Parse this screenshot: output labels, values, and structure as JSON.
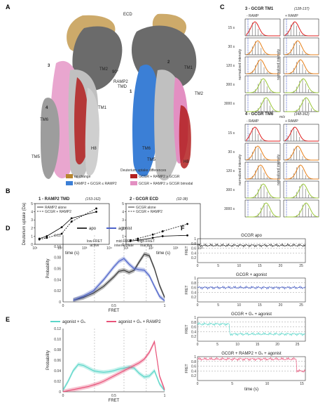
{
  "panels": {
    "A": {
      "letter": "A",
      "labels": {
        "ecd": "ECD",
        "tm2": "TM2",
        "tm6": "TM6",
        "tm1": "TM1",
        "tm5": "TM5",
        "h8": "H8",
        "ramp2tmd": "RAMP2\nTMD",
        "rot": "90°",
        "n1": "1",
        "n2": "2",
        "n3": "3",
        "n4": "4"
      },
      "legend_title": "Deuterium uptake differences",
      "legend": [
        {
          "label": "no change",
          "color": "#b8862f"
        },
        {
          "label": "GCGR + RAMP2 ≥ GCGR",
          "color": "#b32020"
        },
        {
          "label": "RAMP2 + GCGR ≤ RAMP2",
          "color": "#3b7fd6"
        },
        {
          "label": "GCGR + RAMP2 ≥ GCGR bimodal",
          "color": "#e38fc2"
        }
      ]
    },
    "B": {
      "letter": "B",
      "chart_data": [
        {
          "type": "line",
          "title": "1 - RAMP2 TMD",
          "title_range": "(153-162)",
          "xlabel": "time (s)",
          "ylabel": "Deuterium uptake (Da)",
          "xscale": "log",
          "xticks": [
            "10¹",
            "10²",
            "10³",
            "10⁴"
          ],
          "ylim": [
            0,
            5
          ],
          "yticks": [
            0,
            1,
            2,
            3,
            4,
            5
          ],
          "series": [
            {
              "name": "RAMP2 alone",
              "style": "solid",
              "x": [
                15,
                30,
                120,
                300,
                3000
              ],
              "values": [
                0.7,
                1.0,
                2.1,
                3.2,
                4.0
              ]
            },
            {
              "name": "GCGR + RAMP2",
              "style": "dashed",
              "x": [
                15,
                30,
                120,
                300,
                3000
              ],
              "values": [
                0.6,
                0.8,
                1.3,
                2.8,
                4.4
              ]
            }
          ]
        },
        {
          "type": "line",
          "title": "2 - GCGR ECD",
          "title_range": "(32-38)",
          "xlabel": "time (s)",
          "xscale": "log",
          "xticks": [
            "10¹",
            "10²",
            "10³",
            "10⁴"
          ],
          "ylim": [
            0,
            5
          ],
          "yticks": [
            0,
            1,
            2,
            3,
            4,
            5
          ],
          "series": [
            {
              "name": "GCGR alone",
              "style": "solid",
              "x": [
                15,
                30,
                120,
                300,
                3000
              ],
              "values": [
                0.4,
                0.5,
                0.8,
                1.0,
                1.1
              ]
            },
            {
              "name": "GCGR + RAMP2",
              "style": "dashed",
              "x": [
                15,
                30,
                120,
                300,
                3000
              ],
              "values": [
                0.5,
                0.7,
                1.2,
                1.6,
                2.5
              ]
            }
          ]
        }
      ]
    },
    "C": {
      "letter": "C",
      "blocks": [
        {
          "title": "3 - GCGR TM1",
          "title_range": "(128-137)",
          "col1": "- RAMP",
          "col2": "+ RAMP",
          "times": [
            "15 s",
            "30 s",
            "120 s",
            "300 s",
            "3000 s"
          ],
          "ylabel": "normalized intensity",
          "xlabel": "m/z",
          "colors": [
            "#e02020",
            "#e8821d",
            "#e8821d",
            "#9cc83a",
            "#9cc83a"
          ]
        },
        {
          "title": "4 - GCGR TM6",
          "title_range": "(348-362)",
          "col1": "- RAMP",
          "col2": "+ RAMP",
          "times": [
            "15 s",
            "30 s",
            "120 s",
            "300 s",
            "3000 s"
          ],
          "ylabel": "normalized intensity",
          "colors": [
            "#e02020",
            "#e8821d",
            "#e8821d",
            "#9cc83a",
            "#9cc83a"
          ]
        }
      ]
    },
    "D": {
      "letter": "D",
      "chart_data": {
        "type": "line",
        "xlabel": "FRET",
        "ylabel": "Probability",
        "xlim": [
          0,
          1
        ],
        "ylim": [
          0,
          0.12
        ],
        "xticks": [
          "0",
          "0.5",
          "1"
        ],
        "yticks": [
          "0",
          "0.02",
          "0.04",
          "0.06",
          "0.08",
          "0.10",
          "0.12"
        ],
        "annotations": [
          "low-FRET\nactive",
          "mid-FRET\nintermediate",
          "high-FRET\ninactive"
        ],
        "vlines": [
          0.31,
          0.6,
          0.82
        ],
        "series": [
          {
            "name": "apo",
            "color": "#3a3a3a",
            "x": [
              0.1,
              0.2,
              0.3,
              0.4,
              0.5,
              0.55,
              0.6,
              0.65,
              0.7,
              0.75,
              0.8,
              0.85,
              0.9,
              0.95,
              1.0
            ],
            "values": [
              0.003,
              0.008,
              0.016,
              0.028,
              0.045,
              0.055,
              0.057,
              0.053,
              0.057,
              0.072,
              0.086,
              0.083,
              0.06,
              0.03,
              0.008
            ]
          },
          {
            "name": "agonist",
            "color": "#4d63c9",
            "x": [
              0.1,
              0.2,
              0.3,
              0.4,
              0.5,
              0.55,
              0.6,
              0.65,
              0.7,
              0.75,
              0.8,
              0.85,
              0.9,
              0.95,
              1.0
            ],
            "values": [
              0.003,
              0.01,
              0.02,
              0.04,
              0.063,
              0.073,
              0.078,
              0.068,
              0.06,
              0.058,
              0.057,
              0.047,
              0.028,
              0.01,
              0.002
            ]
          }
        ]
      }
    },
    "E": {
      "letter": "E",
      "chart_data": {
        "type": "line",
        "xlabel": "FRET",
        "ylabel": "Probability",
        "xlim": [
          0,
          1
        ],
        "ylim": [
          0,
          0.12
        ],
        "xticks": [
          "0",
          "0.5",
          "1"
        ],
        "yticks": [
          "0",
          "0.02",
          "0.04",
          "0.06",
          "0.08",
          "0.10",
          "0.12"
        ],
        "vlines": [
          0.31,
          0.6,
          0.82
        ],
        "series": [
          {
            "name": "agonist + Gₛ",
            "color": "#5cd6c9",
            "x": [
              0,
              0.05,
              0.1,
              0.15,
              0.2,
              0.25,
              0.3,
              0.35,
              0.4,
              0.45,
              0.5,
              0.55,
              0.6,
              0.65,
              0.7,
              0.75,
              0.8,
              0.85,
              0.9,
              0.95,
              1.0
            ],
            "values": [
              0.003,
              0.02,
              0.04,
              0.052,
              0.05,
              0.045,
              0.04,
              0.038,
              0.037,
              0.038,
              0.04,
              0.043,
              0.045,
              0.047,
              0.045,
              0.035,
              0.028,
              0.03,
              0.04,
              0.015,
              0.002
            ]
          },
          {
            "name": "agonist + Gₛ + RAMP2",
            "color": "#e8547a",
            "x": [
              0,
              0.05,
              0.1,
              0.15,
              0.2,
              0.25,
              0.3,
              0.35,
              0.4,
              0.45,
              0.5,
              0.55,
              0.6,
              0.65,
              0.7,
              0.75,
              0.8,
              0.85,
              0.9,
              0.95,
              1.0
            ],
            "values": [
              0.0,
              0.002,
              0.004,
              0.006,
              0.008,
              0.01,
              0.013,
              0.016,
              0.02,
              0.025,
              0.03,
              0.035,
              0.04,
              0.045,
              0.05,
              0.055,
              0.062,
              0.075,
              0.095,
              0.03,
              0.004
            ]
          }
        ]
      }
    },
    "F": {
      "letter": "F",
      "chart_data": [
        {
          "type": "line",
          "title": "GCGR apo",
          "color": "#333333",
          "ylabel": "FRET",
          "yticks": [
            "0.2",
            "0.4",
            "0.6",
            "0.8",
            "1"
          ],
          "xticks": [
            "0",
            "5",
            "10",
            "15",
            "20",
            "25"
          ],
          "xlim": [
            0,
            26
          ],
          "level": 0.72
        },
        {
          "type": "line",
          "title": "GCGR + agonist",
          "color": "#4d63c9",
          "ylabel": "FRET",
          "yticks": [
            "0.2",
            "0.4",
            "0.6",
            "0.8",
            "1"
          ],
          "xticks": [
            "0",
            "5",
            "10",
            "15",
            "20",
            "25"
          ],
          "xlim": [
            0,
            26
          ],
          "level": 0.6
        },
        {
          "type": "line",
          "title": "GCGR + Gₛ + agonist",
          "color": "#5cd6c9",
          "ylabel": "FRET",
          "yticks": [
            "0.2",
            "0.4",
            "0.6",
            "0.8",
            "1"
          ],
          "xticks": [
            "0",
            "5",
            "10",
            "15",
            "20",
            "25"
          ],
          "xlim": [
            0,
            27
          ],
          "level": 0.72,
          "level2": 0.3,
          "switch": 8
        },
        {
          "type": "line",
          "title": "GCGR + RAMP2 + Gₛ + agonist",
          "color": "#e8547a",
          "ylabel": "FRET",
          "xlabel": "time (s)",
          "yticks": [
            "0.2",
            "0.4",
            "0.6",
            "0.8",
            "1"
          ],
          "xticks": [
            "0",
            "5",
            "10",
            "15"
          ],
          "xlim": [
            0,
            15.5
          ],
          "level": 0.9,
          "level2": 0.4,
          "switch": 14.2
        }
      ]
    }
  }
}
